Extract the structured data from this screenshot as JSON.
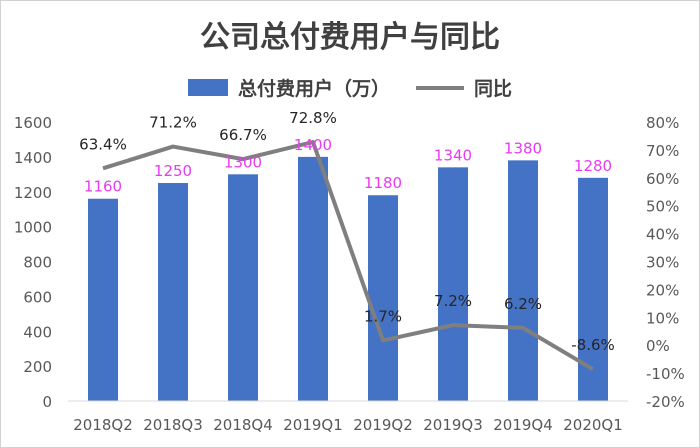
{
  "chart_data": {
    "type": "bar",
    "title": "公司总付费用户与同比",
    "categories": [
      "2018Q2",
      "2018Q3",
      "2018Q4",
      "2019Q1",
      "2019Q2",
      "2019Q3",
      "2019Q4",
      "2020Q1"
    ],
    "series": [
      {
        "name": "总付费用户（万）",
        "type": "bar",
        "axis": "left",
        "color": "#4472c4",
        "label_color": "#e83cf0",
        "values": [
          1160,
          1250,
          1300,
          1400,
          1180,
          1340,
          1380,
          1280
        ],
        "labels": [
          "1160",
          "1250",
          "1300",
          "1400",
          "1180",
          "1340",
          "1380",
          "1280"
        ]
      },
      {
        "name": "同比",
        "type": "line",
        "axis": "right",
        "color": "#7f7f7f",
        "label_color": "#262626",
        "values": [
          63.4,
          71.2,
          66.7,
          72.8,
          1.7,
          7.2,
          6.2,
          -8.6
        ],
        "labels": [
          "63.4%",
          "71.2%",
          "66.7%",
          "72.8%",
          "1.7%",
          "7.2%",
          "6.2%",
          "-8.6%"
        ]
      }
    ],
    "y_left": {
      "min": 0,
      "max": 1600,
      "ticks": [
        0,
        200,
        400,
        600,
        800,
        1000,
        1200,
        1400,
        1600
      ],
      "tick_labels": [
        "0",
        "200",
        "400",
        "600",
        "800",
        "1000",
        "1200",
        "1400",
        "1600"
      ]
    },
    "y_right": {
      "min": -20,
      "max": 80,
      "ticks": [
        -20,
        -10,
        0,
        10,
        20,
        30,
        40,
        50,
        60,
        70,
        80
      ],
      "tick_labels": [
        "-20%",
        "-10%",
        "0%",
        "10%",
        "20%",
        "30%",
        "40%",
        "50%",
        "60%",
        "70%",
        "80%"
      ]
    },
    "grid": false,
    "legend_position": "top"
  }
}
